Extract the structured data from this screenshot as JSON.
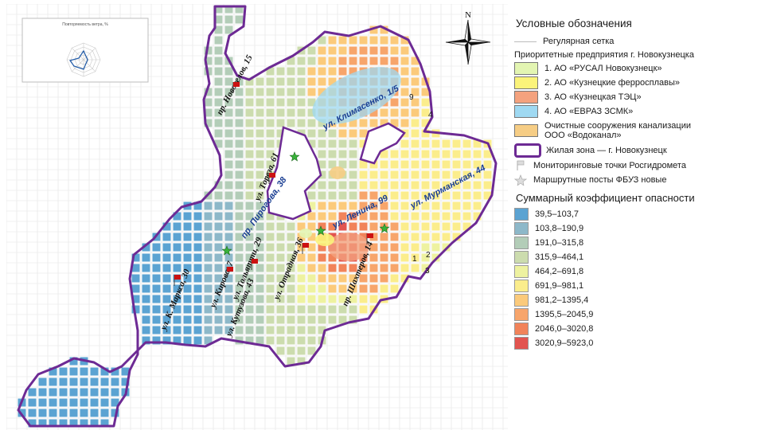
{
  "legend": {
    "title": "Условные обозначения",
    "grid_label": "Регулярная сетка",
    "enterprises_heading": "Приоритетные предприятия г. Новокузнецка",
    "enterprises": [
      {
        "label": "1. АО «РУСАЛ Новокузнецк»",
        "color": "#e3f5b2"
      },
      {
        "label": "2. АО «Кузнецкие ферросплавы»",
        "color": "#fbf37a"
      },
      {
        "label": "3. АО «Кузнецкая ТЭЦ»",
        "color": "#f4a27e"
      },
      {
        "label": "4. АО «ЕВРАЗ ЗСМК»",
        "color": "#9fd9f2"
      },
      {
        "label_lines": [
          "Очистные сооружения канализации",
          "ООО «Водоканал»"
        ],
        "color": "#f6cd85"
      }
    ],
    "zone_label": "Жилая зона — г. Новокузнецк",
    "monitoring_label": "Мониторинговые точки Росгидромета",
    "route_label": "Маршрутные посты ФБУЗ новые",
    "hazard_title": "Суммарный коэффициент опасности",
    "hazard_classes": [
      {
        "label": "39,5–103,7",
        "color": "#5ba3d2"
      },
      {
        "label": "103,8–190,9",
        "color": "#8db8c9"
      },
      {
        "label": "191,0–315,8",
        "color": "#b3cdb8"
      },
      {
        "label": "315,9–464,1",
        "color": "#ccdcae"
      },
      {
        "label": "464,2–691,8",
        "color": "#eef2a0"
      },
      {
        "label": "691,9–981,1",
        "color": "#fbed8c"
      },
      {
        "label": "981,2–1395,4",
        "color": "#fbca7b"
      },
      {
        "label": "1395,5–2045,9",
        "color": "#f7a56b"
      },
      {
        "label": "2046,0–3020,8",
        "color": "#f1835a"
      },
      {
        "label": "3020,9–5923,0",
        "color": "#e2544f"
      }
    ]
  },
  "map": {
    "north_label": "N",
    "inset_title": "Повторяемость ветра, %",
    "streets": [
      "пр. Новоселов, 15",
      "ул. Климасенко, 1/5",
      "ул. Тореза, 61",
      "пр. Пирогова, 38",
      "ул. Ленина, 99",
      "ул. Мурманская, 44",
      "ул. Кирова, 7",
      "ул. Тольятти, 29",
      "ул. К. Маркса, 30",
      "ул. Кутузова, 43",
      "ул. Отрадная, 36",
      "пр. Шахтеров, 14"
    ],
    "markers": [
      "1",
      "2",
      "3",
      "4",
      "9"
    ]
  }
}
